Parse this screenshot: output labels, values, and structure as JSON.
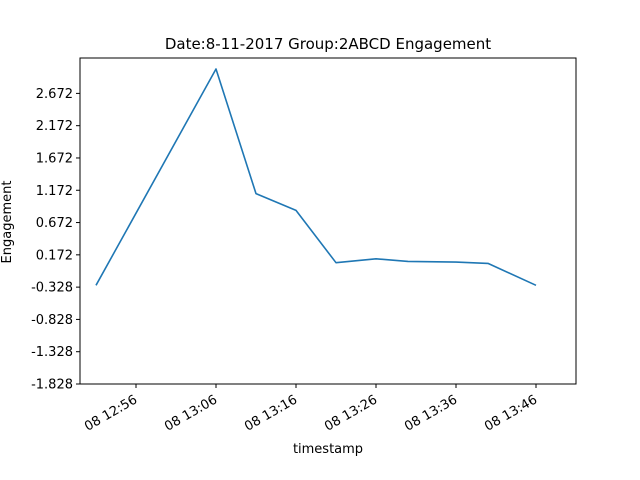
{
  "chart_data": {
    "type": "line",
    "title": "Date:8-11-2017 Group:2ABCD Engagement",
    "xlabel": "timestamp",
    "ylabel": "Engagement",
    "x": [
      "12:51",
      "13:06",
      "13:11",
      "13:16",
      "13:21",
      "13:26",
      "13:30",
      "13:36",
      "13:40",
      "13:46"
    ],
    "x_ticks": [
      {
        "time": "12:56",
        "label": "08 12:56"
      },
      {
        "time": "13:06",
        "label": "08 13:06"
      },
      {
        "time": "13:16",
        "label": "08 13:16"
      },
      {
        "time": "13:26",
        "label": "08 13:26"
      },
      {
        "time": "13:36",
        "label": "08 13:36"
      },
      {
        "time": "13:46",
        "label": "08 13:46"
      }
    ],
    "xlim": [
      "12:49",
      "13:51"
    ],
    "y_ticks": [
      -1.828,
      -1.328,
      -0.828,
      -0.328,
      0.172,
      0.672,
      1.172,
      1.672,
      2.172,
      2.672
    ],
    "ylim": [
      -1.828,
      3.22
    ],
    "series": [
      {
        "color": "#1f77b4",
        "values": [
          -0.3,
          3.05,
          1.12,
          0.86,
          0.05,
          0.11,
          0.07,
          0.06,
          0.04,
          -0.3
        ]
      }
    ],
    "grid": false,
    "legend": "none"
  }
}
